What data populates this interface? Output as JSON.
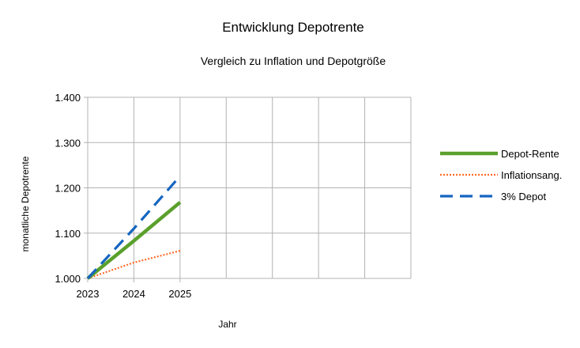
{
  "chart_data": {
    "type": "line",
    "title": "Entwicklung Depotrente",
    "subtitle": "Vergleich zu Inflation und Depotgröße",
    "xlabel": "Jahr",
    "ylabel": "monatliche Depotrente",
    "x": [
      "2023",
      "2024",
      "2025"
    ],
    "xlim": [
      2023,
      2030
    ],
    "ylim": [
      1000,
      1400
    ],
    "yticks": [
      "1.000",
      "1.100",
      "1.200",
      "1.300",
      "1.400"
    ],
    "ytick_values": [
      1000,
      1100,
      1200,
      1300,
      1400
    ],
    "grid": true,
    "legend": "right",
    "series": [
      {
        "name": "Depot-Rente",
        "values": [
          1000,
          1083,
          1168
        ],
        "color": "#5aa02c",
        "style": "solid"
      },
      {
        "name": "Inflationsang.",
        "values": [
          1000,
          1035,
          1061
        ],
        "color": "#ff6b2b",
        "style": "dotted"
      },
      {
        "name": "3% Depot",
        "values": [
          1000,
          1110,
          1226
        ],
        "color": "#1565c0",
        "style": "dashed"
      }
    ]
  }
}
